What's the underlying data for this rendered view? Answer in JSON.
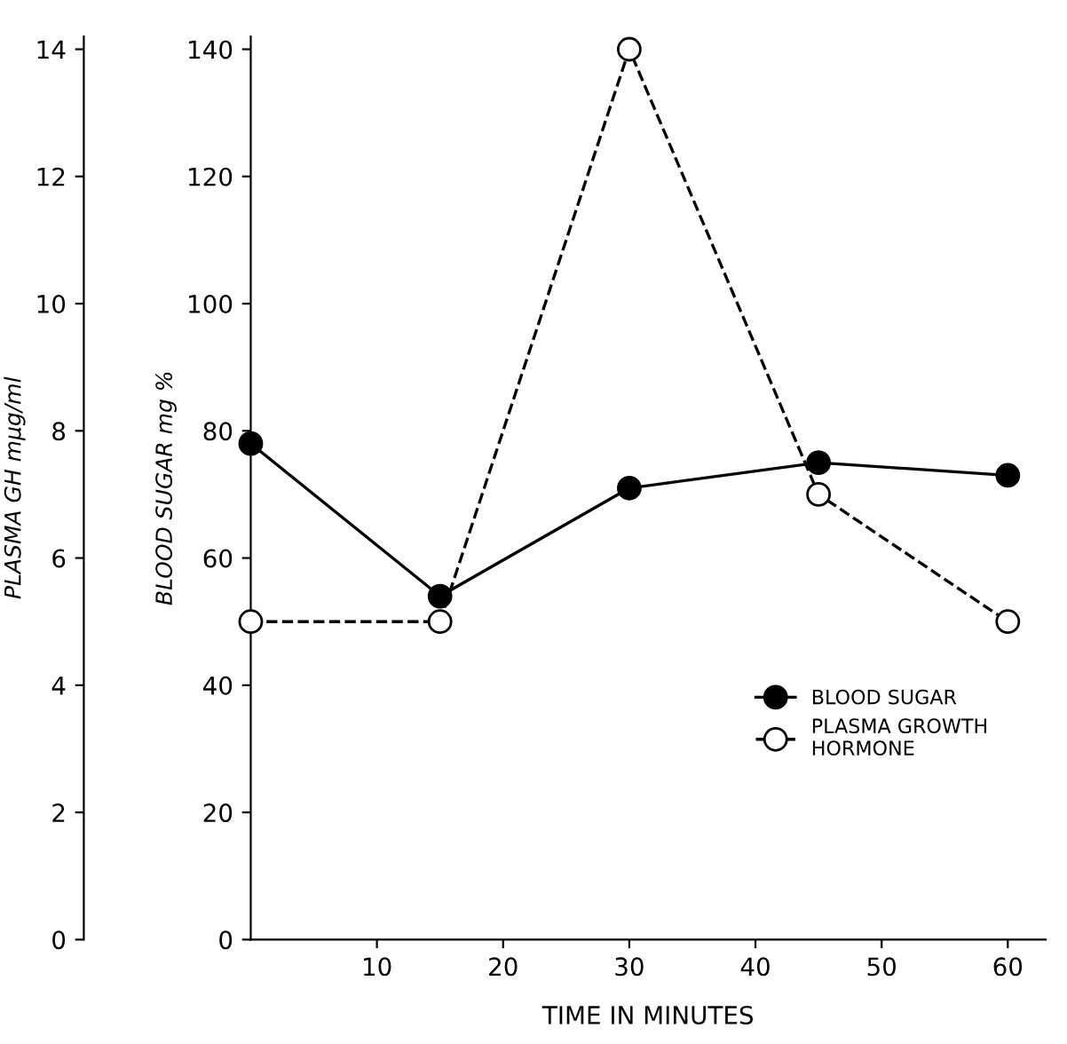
{
  "chart_data": {
    "type": "line",
    "xlabel": "TIME IN MINUTES",
    "ylabel": "BLOOD SUGAR mg %",
    "y2label": "PLASMA GH mμg/ml",
    "x": [
      0,
      15,
      30,
      45,
      60
    ],
    "xlim": [
      0,
      63
    ],
    "xticks": [
      10,
      20,
      30,
      40,
      50,
      60
    ],
    "ylim": [
      0,
      142
    ],
    "yticks": [
      0,
      20,
      40,
      60,
      80,
      100,
      120,
      140
    ],
    "y2lim": [
      0,
      14.2
    ],
    "y2ticks": [
      0,
      2,
      4,
      6,
      8,
      10,
      12,
      14
    ],
    "marker": "circle",
    "grid": false,
    "legend": "lower right",
    "series": [
      {
        "name": "BLOOD SUGAR",
        "color": "#000000",
        "values": [
          78,
          54,
          71,
          75,
          73
        ],
        "line_style": "solid"
      },
      {
        "name": "PLASMA GROWTH\nHORMONE",
        "color": "#000000",
        "values": [
          5,
          5,
          14,
          7,
          5
        ],
        "axis": "y2",
        "line_style": "dashed"
      }
    ]
  }
}
